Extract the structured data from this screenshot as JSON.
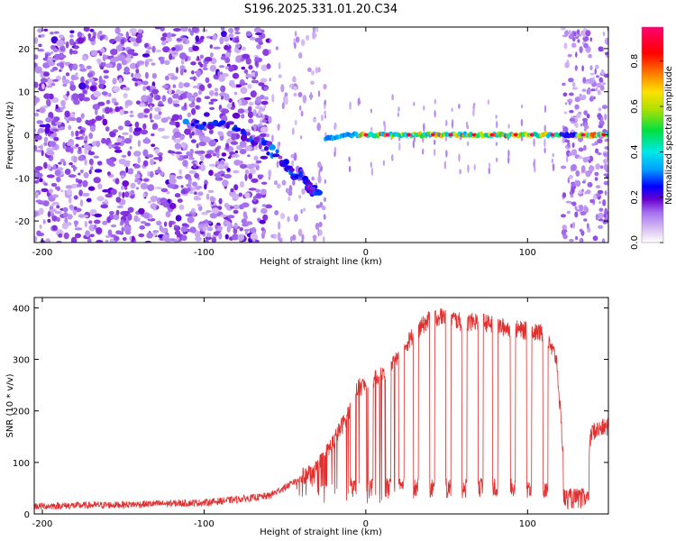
{
  "figure": {
    "title": "S196.2025.331.01.20.C34"
  },
  "chart_data": [
    {
      "type": "heatmap",
      "name": "spectrogram",
      "xlabel": "Height of straight line (km)",
      "ylabel": "Frequency (Hz)",
      "xlim": [
        -205,
        150
      ],
      "ylim": [
        -25,
        25
      ],
      "x_ticks": [
        -200,
        -100,
        0,
        100
      ],
      "y_ticks": [
        -20,
        -10,
        0,
        10,
        20
      ],
      "colorbar": {
        "label": "Normalized spectral amplitude",
        "range": [
          0,
          0.95
        ],
        "ticks": [
          0,
          0.2,
          0.4,
          0.6,
          0.8
        ],
        "tick_labels": [
          "0.0",
          "0.2",
          "0.4",
          "0.6",
          "0.8"
        ],
        "colormap": [
          "#e8d8f4",
          "#a46ff0",
          "#6a00d0",
          "#0000ff",
          "#00a0ff",
          "#00e8e8",
          "#00e040",
          "#b0e000",
          "#ffe000",
          "#ff8000",
          "#ff0000",
          "#ff0070"
        ]
      },
      "features": {
        "noise_band_km": [
          -205,
          -60
        ],
        "noise_amplitude": 0.12,
        "descending_track": {
          "x": [
            -110,
            -80,
            -60,
            -45,
            -35,
            -30
          ],
          "y": [
            3,
            1,
            -3,
            -8,
            -12,
            -14
          ],
          "amplitude": 0.22
        },
        "carrier_start_km": -25,
        "carrier_freq_hz": 0,
        "carrier_amplitude": [
          0.35,
          0.95
        ],
        "right_noise_band_km": [
          122,
          150
        ]
      }
    },
    {
      "type": "line",
      "name": "snr",
      "xlabel": "Height of straight line (km)",
      "ylabel": "SNR (10 * v/v)",
      "xlim": [
        -205,
        150
      ],
      "ylim": [
        0,
        420
      ],
      "x_ticks": [
        -200,
        -100,
        0,
        100
      ],
      "y_ticks": [
        0,
        100,
        200,
        300,
        400
      ],
      "color": "#e03030",
      "profile": {
        "x": [
          -205,
          -150,
          -100,
          -80,
          -60,
          -45,
          -30,
          -20,
          -10,
          -5,
          0,
          10,
          20,
          30,
          40,
          50,
          60,
          70,
          80,
          90,
          100,
          110,
          118,
          122,
          130,
          140,
          150
        ],
        "y": [
          15,
          18,
          22,
          28,
          35,
          60,
          90,
          140,
          200,
          245,
          250,
          270,
          310,
          350,
          380,
          385,
          370,
          375,
          365,
          360,
          355,
          350,
          300,
          120,
          20,
          160,
          170
        ]
      },
      "dropouts_km": [
        -8,
        3,
        14,
        22,
        31,
        41,
        51,
        61,
        71,
        80,
        91,
        101,
        111
      ]
    }
  ]
}
